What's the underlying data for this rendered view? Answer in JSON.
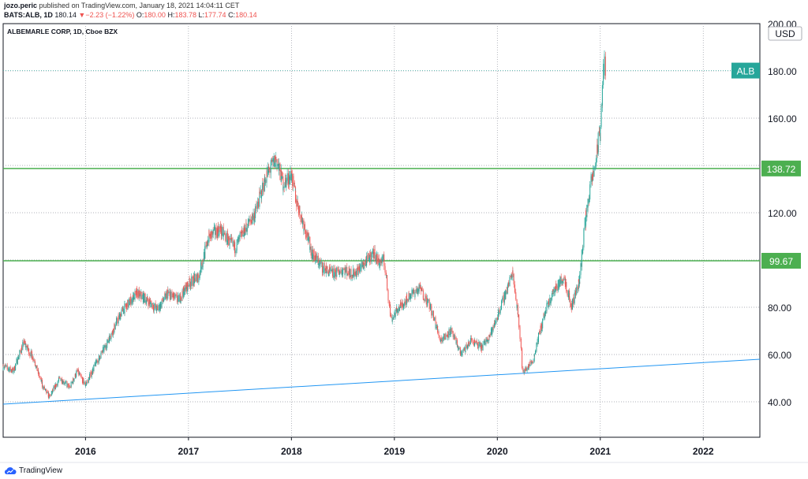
{
  "header": {
    "author": "jozo.peric",
    "published": "published on TradingView.com, January 18, 2021 14:04:11 CET",
    "symbol": "BATS:ALB, 1D",
    "last": "180.14",
    "change": "−2.23 (−1.22%)",
    "open_label": "O:",
    "open": "180.00",
    "high_label": "H:",
    "high": "183.78",
    "low_label": "L:",
    "low": "177.74",
    "close_label": "C:",
    "close": "180.14"
  },
  "footer": {
    "brand": "TradingView"
  },
  "colors": {
    "up": "#26a69a",
    "down": "#ef5350",
    "support": "#4caf50",
    "trend": "#2196f3",
    "grid": "#9598a1"
  },
  "chart_data": {
    "type": "candlestick",
    "title": "ALBEMARLE CORP, 1D, Cboe BZX",
    "currency": "USD",
    "ylim": [
      25,
      200
    ],
    "xlim": [
      2015.2,
      2022.55
    ],
    "x_ticks": [
      2016,
      2017,
      2018,
      2019,
      2020,
      2021,
      2022
    ],
    "x_tick_labels": [
      "2016",
      "2017",
      "2018",
      "2019",
      "2020",
      "2021",
      "2022"
    ],
    "y_ticks": [
      40,
      60,
      80,
      100,
      120,
      140,
      160,
      180,
      200
    ],
    "y_tick_labels": [
      "40.00",
      "60.00",
      "80.00",
      "100.00",
      "120.00",
      "140.00",
      "160.00",
      "180.00",
      "200.00"
    ],
    "last_price": {
      "label": "ALB",
      "value": 180.14
    },
    "horizontal_lines": [
      {
        "value": 138.72,
        "label": "138.72"
      },
      {
        "value": 99.67,
        "label": "99.67"
      }
    ],
    "trend_line": {
      "start": [
        2015.2,
        39
      ],
      "end": [
        2022.55,
        58
      ]
    },
    "price_path": [
      [
        2015.2,
        55
      ],
      [
        2015.3,
        53
      ],
      [
        2015.4,
        65
      ],
      [
        2015.5,
        58
      ],
      [
        2015.58,
        47
      ],
      [
        2015.65,
        42
      ],
      [
        2015.75,
        50
      ],
      [
        2015.85,
        46
      ],
      [
        2015.92,
        53
      ],
      [
        2016.0,
        47
      ],
      [
        2016.1,
        56
      ],
      [
        2016.2,
        64
      ],
      [
        2016.35,
        78
      ],
      [
        2016.5,
        86
      ],
      [
        2016.6,
        83
      ],
      [
        2016.7,
        79
      ],
      [
        2016.8,
        86
      ],
      [
        2016.9,
        83
      ],
      [
        2017.0,
        90
      ],
      [
        2017.1,
        93
      ],
      [
        2017.2,
        110
      ],
      [
        2017.3,
        113
      ],
      [
        2017.45,
        105
      ],
      [
        2017.55,
        113
      ],
      [
        2017.65,
        120
      ],
      [
        2017.75,
        135
      ],
      [
        2017.85,
        143
      ],
      [
        2017.92,
        132
      ],
      [
        2018.0,
        136
      ],
      [
        2018.05,
        125
      ],
      [
        2018.12,
        115
      ],
      [
        2018.2,
        103
      ],
      [
        2018.3,
        97
      ],
      [
        2018.4,
        94
      ],
      [
        2018.5,
        96
      ],
      [
        2018.6,
        94
      ],
      [
        2018.7,
        98
      ],
      [
        2018.8,
        103
      ],
      [
        2018.85,
        99
      ],
      [
        2018.9,
        100
      ],
      [
        2018.97,
        75
      ],
      [
        2019.05,
        80
      ],
      [
        2019.15,
        85
      ],
      [
        2019.25,
        88
      ],
      [
        2019.35,
        80
      ],
      [
        2019.45,
        66
      ],
      [
        2019.55,
        70
      ],
      [
        2019.65,
        60
      ],
      [
        2019.75,
        66
      ],
      [
        2019.85,
        63
      ],
      [
        2019.95,
        70
      ],
      [
        2020.05,
        82
      ],
      [
        2020.15,
        95
      ],
      [
        2020.22,
        70
      ],
      [
        2020.25,
        52
      ],
      [
        2020.35,
        58
      ],
      [
        2020.45,
        76
      ],
      [
        2020.55,
        87
      ],
      [
        2020.65,
        93
      ],
      [
        2020.72,
        80
      ],
      [
        2020.8,
        92
      ],
      [
        2020.85,
        115
      ],
      [
        2020.9,
        130
      ],
      [
        2020.95,
        140
      ],
      [
        2021.0,
        155
      ],
      [
        2021.04,
        185
      ],
      [
        2021.05,
        180
      ]
    ],
    "candles": []
  }
}
